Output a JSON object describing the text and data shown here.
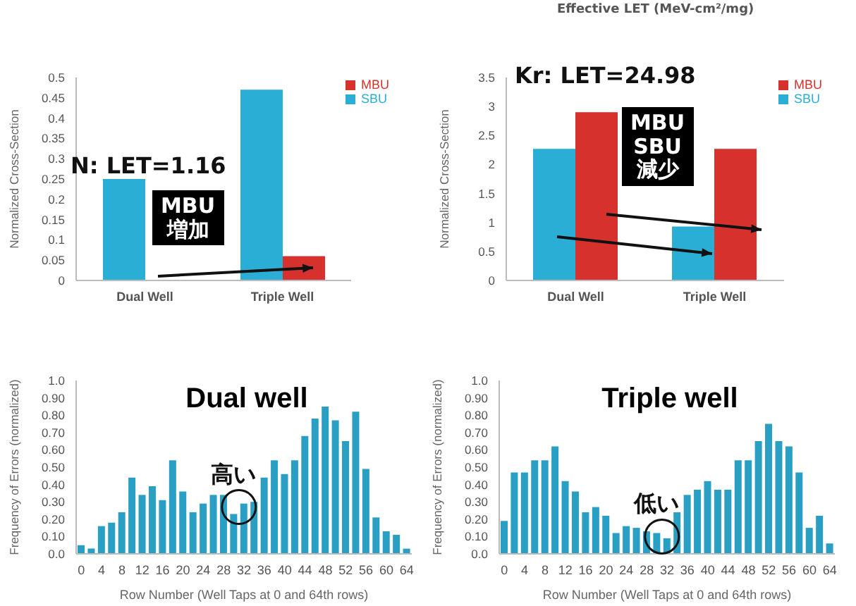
{
  "chart_data": [
    {
      "type": "bar",
      "ylabel": "Normalized Cross-Section",
      "categories": [
        "Dual Well",
        "Triple Well"
      ],
      "series": [
        {
          "name": "SBU",
          "color": "#2aaed6",
          "values": [
            0.25,
            0.47
          ]
        },
        {
          "name": "MBU",
          "color": "#d7312e",
          "values": [
            0,
            0.06
          ]
        }
      ],
      "ylim": [
        0,
        0.5
      ],
      "yticks": [
        0,
        0.05,
        0.1,
        0.15,
        0.2,
        0.25,
        0.3,
        0.35,
        0.4,
        0.45,
        0.5
      ],
      "legend": "top right",
      "annotations": [
        "N: LET=1.16",
        "MBU\n増加"
      ]
    },
    {
      "type": "bar",
      "ylabel": "Normalized Cross-Section",
      "categories": [
        "Dual Well",
        "Triple Well"
      ],
      "series": [
        {
          "name": "SBU",
          "color": "#2aaed6",
          "values": [
            2.27,
            0.93
          ]
        },
        {
          "name": "MBU",
          "color": "#d7312e",
          "values": [
            2.9,
            2.27
          ]
        }
      ],
      "ylim": [
        0,
        3.5
      ],
      "yticks": [
        0,
        0.5,
        1,
        1.5,
        2,
        2.5,
        3,
        3.5
      ],
      "legend": "top right",
      "annotations": [
        "Kr: LET=24.98",
        "MBU\nSBU\n減少",
        "Effective LET (MeV-cm²/mg)"
      ]
    },
    {
      "type": "bar",
      "title": "Dual well",
      "xlabel": "Row Number (Well Taps at 0 and 64th rows)",
      "ylabel": "Frequency of Errors (normalized)",
      "color": "#2a9fc4",
      "x": [
        0,
        2,
        4,
        6,
        8,
        10,
        12,
        14,
        16,
        18,
        20,
        22,
        24,
        26,
        28,
        30,
        32,
        34,
        36,
        38,
        40,
        42,
        44,
        46,
        48,
        50,
        52,
        54,
        56,
        58,
        60,
        62,
        64
      ],
      "values": [
        0.05,
        0.03,
        0.16,
        0.18,
        0.24,
        0.44,
        0.34,
        0.39,
        0.31,
        0.54,
        0.36,
        0.24,
        0.29,
        0.34,
        0.34,
        0.23,
        0.29,
        0.3,
        0.44,
        0.54,
        0.46,
        0.54,
        0.68,
        0.78,
        0.85,
        0.77,
        0.65,
        0.82,
        0.49,
        0.21,
        0.13,
        0.11,
        0.03
      ],
      "xlim": [
        -1,
        65
      ],
      "xticks": [
        0,
        4,
        8,
        12,
        16,
        20,
        24,
        28,
        32,
        36,
        40,
        44,
        48,
        52,
        56,
        60,
        64
      ],
      "ylim": [
        0,
        1
      ],
      "yticks": [
        {
          "value": 0,
          "label": "0.0"
        },
        {
          "value": 0.1,
          "label": "0.10"
        },
        {
          "value": 0.2,
          "label": "0.20"
        },
        {
          "value": 0.3,
          "label": "0.30"
        },
        {
          "value": 0.4,
          "label": "0.40"
        },
        {
          "value": 0.5,
          "label": "0.50"
        },
        {
          "value": 0.6,
          "label": "0.60"
        },
        {
          "value": 0.7,
          "label": "0.70"
        },
        {
          "value": 0.8,
          "label": "0.80"
        },
        {
          "value": 0.9,
          "label": "0.90"
        },
        {
          "value": 1,
          "label": "1.0"
        }
      ],
      "annotations": [
        {
          "text": "高い",
          "x": 31,
          "y": 0.27
        }
      ]
    },
    {
      "type": "bar",
      "title": "Triple well",
      "xlabel": "Row Number (Well Taps at 0 and 64th rows)",
      "ylabel": "Frequency of Errors (normalized)",
      "color": "#2a9fc4",
      "x": [
        0,
        2,
        4,
        6,
        8,
        10,
        12,
        14,
        16,
        18,
        20,
        22,
        24,
        26,
        28,
        30,
        32,
        34,
        36,
        38,
        40,
        42,
        44,
        46,
        48,
        50,
        52,
        54,
        56,
        58,
        60,
        62,
        64
      ],
      "values": [
        0.19,
        0.47,
        0.47,
        0.54,
        0.54,
        0.62,
        0.42,
        0.36,
        0.24,
        0.27,
        0.22,
        0.12,
        0.16,
        0.15,
        0.13,
        0.12,
        0.09,
        0.24,
        0.34,
        0.37,
        0.42,
        0.37,
        0.37,
        0.54,
        0.54,
        0.65,
        0.75,
        0.65,
        0.62,
        0.47,
        0.15,
        0.22,
        0.06
      ],
      "xlim": [
        -1,
        65
      ],
      "xticks": [
        0,
        4,
        8,
        12,
        16,
        20,
        24,
        28,
        32,
        36,
        40,
        44,
        48,
        52,
        56,
        60,
        64
      ],
      "ylim": [
        0,
        1
      ],
      "yticks": [
        {
          "value": 0,
          "label": "0.0"
        },
        {
          "value": 0.1,
          "label": "0.10"
        },
        {
          "value": 0.2,
          "label": "0.20"
        },
        {
          "value": 0.3,
          "label": "0.30"
        },
        {
          "value": 0.4,
          "label": "0.40"
        },
        {
          "value": 0.5,
          "label": "0.50"
        },
        {
          "value": 0.6,
          "label": "0.60"
        },
        {
          "value": 0.7,
          "label": "0.70"
        },
        {
          "value": 0.8,
          "label": "0.80"
        },
        {
          "value": 0.9,
          "label": "0.90"
        },
        {
          "value": 1,
          "label": "1.0"
        }
      ],
      "annotations": [
        {
          "text": "低い",
          "x": 31,
          "y": 0.1
        }
      ]
    }
  ]
}
